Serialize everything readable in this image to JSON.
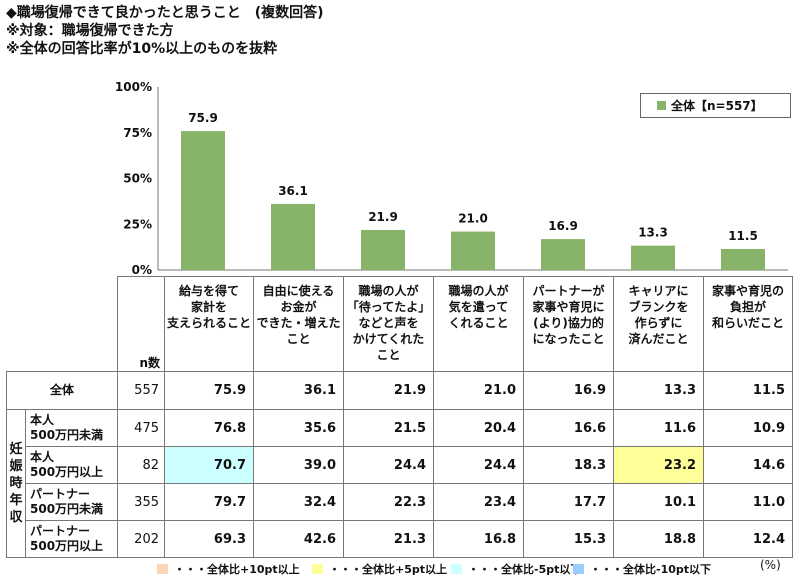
{
  "header": {
    "title": "◆職場復帰できて良かったと思うこと　(複数回答)",
    "target_note": "※対象：職場復帰できた方",
    "filter_note": "※全体の回答比率が10%以上のものを抜粋"
  },
  "chart_data": {
    "type": "bar",
    "categories": [
      "給与を得て家計を支えられること",
      "自由に使えるお金ができた・増えたこと",
      "職場の人が「待ってたよ」などと声をかけてくれたこと",
      "職場の人が気を遣ってくれること",
      "パートナーが家事や育児に(より)協力的になったこと",
      "キャリアにブランクを作らずに済んだこと",
      "家事や育児の負担が和らいだこと"
    ],
    "series": [
      {
        "name": "全体【n=557】",
        "values": [
          75.9,
          36.1,
          21.9,
          21.0,
          16.9,
          13.3,
          11.5
        ]
      }
    ],
    "yticks": [
      "0%",
      "25%",
      "50%",
      "75%",
      "100%"
    ],
    "ylim": [
      0,
      100
    ],
    "bar_color": "#88b46a",
    "legend_position": "top-right"
  },
  "table": {
    "category_labels": [
      [
        "給与を得て",
        "家計を",
        "支えられること"
      ],
      [
        "自由に使える",
        "お金が",
        "できた・増えた",
        "こと"
      ],
      [
        "職場の人が",
        "「待ってたよ」",
        "などと声を",
        "かけてくれた",
        "こと"
      ],
      [
        "職場の人が",
        "気を遣って",
        "くれること"
      ],
      [
        "パートナーが",
        "家事や育児に",
        "(より)協力的",
        "になったこと"
      ],
      [
        "キャリアに",
        "ブランクを",
        "作らずに",
        "済んだこと"
      ],
      [
        "家事や育児の",
        "負担が",
        "和らいだこと"
      ]
    ],
    "n_header": "n数",
    "group_label": "妊娠時年収",
    "rows": [
      {
        "label": [
          "全体"
        ],
        "n": "557",
        "values": [
          "75.9",
          "36.1",
          "21.9",
          "21.0",
          "16.9",
          "13.3",
          "11.5"
        ],
        "highlight": [
          null,
          null,
          null,
          null,
          null,
          null,
          null
        ]
      },
      {
        "label": [
          "本人",
          "500万円未満"
        ],
        "n": "475",
        "values": [
          "76.8",
          "35.6",
          "21.5",
          "20.4",
          "16.6",
          "11.6",
          "10.9"
        ],
        "highlight": [
          null,
          null,
          null,
          null,
          null,
          null,
          null
        ]
      },
      {
        "label": [
          "本人",
          "500万円以上"
        ],
        "n": "82",
        "values": [
          "70.7",
          "39.0",
          "24.4",
          "24.4",
          "18.3",
          "23.2",
          "14.6"
        ],
        "highlight": [
          "cyan",
          null,
          null,
          null,
          null,
          "yellow",
          null
        ]
      },
      {
        "label": [
          "パートナー",
          "500万円未満"
        ],
        "n": "355",
        "values": [
          "79.7",
          "32.4",
          "22.3",
          "23.4",
          "17.7",
          "10.1",
          "11.0"
        ],
        "highlight": [
          null,
          null,
          null,
          null,
          null,
          null,
          null
        ]
      },
      {
        "label": [
          "パートナー",
          "500万円以上"
        ],
        "n": "202",
        "values": [
          "69.3",
          "42.6",
          "21.3",
          "16.8",
          "15.3",
          "18.8",
          "12.4"
        ],
        "highlight": [
          null,
          null,
          null,
          null,
          null,
          null,
          null
        ]
      }
    ]
  },
  "footer": {
    "legend": [
      {
        "label": "・・・全体比+10pt以上",
        "color": "#fcd5b4"
      },
      {
        "label": "・・・全体比+5pt以上",
        "color": "#ffff99"
      },
      {
        "label": "・・・全体比-5pt以下",
        "color": "#ccffff"
      },
      {
        "label": "・・・全体比-10pt以下",
        "color": "#99ccff"
      }
    ],
    "unit": "(%)"
  }
}
